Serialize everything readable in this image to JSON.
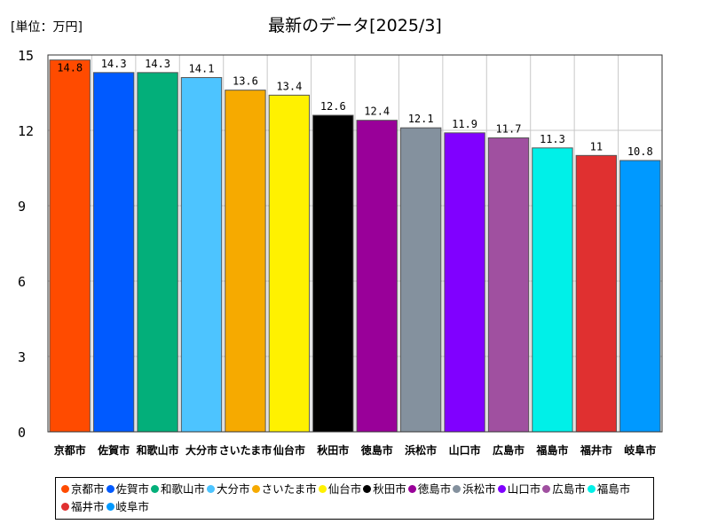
{
  "unit_label": "[単位：万円]",
  "chart_data": {
    "type": "bar",
    "title": "最新のデータ[2025/3]",
    "categories": [
      "京都市",
      "佐賀市",
      "和歌山市",
      "大分市",
      "さいたま市",
      "仙台市",
      "秋田市",
      "徳島市",
      "浜松市",
      "山口市",
      "広島市",
      "福島市",
      "福井市",
      "岐阜市"
    ],
    "values": [
      14.8,
      14.3,
      14.3,
      14.1,
      13.6,
      13.4,
      12.6,
      12.4,
      12.1,
      11.9,
      11.7,
      11.3,
      11,
      10.8
    ],
    "value_labels": [
      "14.8",
      "14.3",
      "14.3",
      "14.1",
      "13.6",
      "13.4",
      "12.6",
      "12.4",
      "12.1",
      "11.9",
      "11.7",
      "11.3",
      "11",
      "10.8"
    ],
    "colors": [
      "#ff4b00",
      "#005aff",
      "#03af7a",
      "#4dc4ff",
      "#f6aa00",
      "#fff100",
      "#000000",
      "#990099",
      "#84919e",
      "#8000ff",
      "#a050a0",
      "#00f0e8",
      "#e03030",
      "#0099ff"
    ],
    "ylim": [
      0,
      15
    ],
    "yticks": [
      "0",
      "3",
      "6",
      "9",
      "12",
      "15"
    ],
    "grid": true,
    "legend_position": "bottom"
  }
}
